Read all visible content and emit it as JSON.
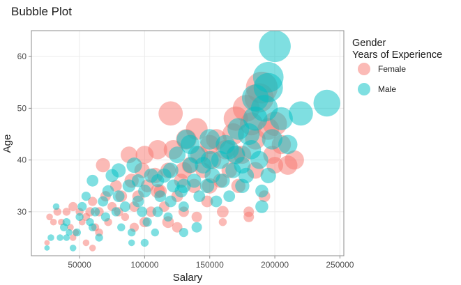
{
  "chart_data": {
    "type": "scatter",
    "title": "Bubble Plot",
    "xlabel": "Salary",
    "ylabel": "Age",
    "xlim": [
      13000,
      253000
    ],
    "ylim": [
      21.5,
      65
    ],
    "x_ticks": [
      50000,
      100000,
      150000,
      200000,
      250000
    ],
    "y_ticks": [
      30,
      40,
      50,
      60
    ],
    "grid": true,
    "legend_position": "right",
    "legend_title_lines": [
      "Gender",
      "Years of Experience"
    ],
    "size_variable": "Years of Experience",
    "series": [
      {
        "name": "Female",
        "color": "#F8766D",
        "points": [
          [
            25000,
            24,
            1
          ],
          [
            27000,
            29,
            2
          ],
          [
            30000,
            28,
            2
          ],
          [
            33000,
            30,
            3
          ],
          [
            36000,
            28,
            2
          ],
          [
            40000,
            30,
            3
          ],
          [
            43000,
            27,
            2
          ],
          [
            45000,
            31,
            4
          ],
          [
            47000,
            26,
            2
          ],
          [
            50000,
            30,
            3
          ],
          [
            52000,
            28,
            2
          ],
          [
            55000,
            29,
            3
          ],
          [
            58000,
            30,
            4
          ],
          [
            60000,
            32,
            4
          ],
          [
            62000,
            27,
            3
          ],
          [
            65000,
            30,
            4
          ],
          [
            68000,
            39,
            8
          ],
          [
            70000,
            33,
            5
          ],
          [
            72000,
            28,
            3
          ],
          [
            75000,
            31,
            4
          ],
          [
            78000,
            35,
            6
          ],
          [
            80000,
            30,
            4
          ],
          [
            82000,
            33,
            6
          ],
          [
            85000,
            29,
            3
          ],
          [
            88000,
            41,
            10
          ],
          [
            90000,
            36,
            8
          ],
          [
            92000,
            31,
            5
          ],
          [
            95000,
            33,
            6
          ],
          [
            98000,
            38,
            9
          ],
          [
            100000,
            41,
            11
          ],
          [
            102000,
            35,
            7
          ],
          [
            105000,
            30,
            5
          ],
          [
            108000,
            37,
            9
          ],
          [
            110000,
            42,
            12
          ],
          [
            112000,
            34,
            7
          ],
          [
            115000,
            31,
            5
          ],
          [
            118000,
            38,
            9
          ],
          [
            120000,
            49,
            16
          ],
          [
            122000,
            42,
            12
          ],
          [
            125000,
            33,
            6
          ],
          [
            128000,
            36,
            8
          ],
          [
            130000,
            30,
            5
          ],
          [
            132000,
            44,
            13
          ],
          [
            135000,
            39,
            10
          ],
          [
            138000,
            35,
            8
          ],
          [
            140000,
            46,
            14
          ],
          [
            142000,
            41,
            11
          ],
          [
            145000,
            38,
            9
          ],
          [
            148000,
            32,
            6
          ],
          [
            150000,
            43,
            12
          ],
          [
            152000,
            40,
            11
          ],
          [
            155000,
            44,
            13
          ],
          [
            158000,
            36,
            8
          ],
          [
            160000,
            28,
            3
          ],
          [
            162000,
            42,
            12
          ],
          [
            165000,
            38,
            9
          ],
          [
            168000,
            45,
            14
          ],
          [
            170000,
            48,
            16
          ],
          [
            172000,
            35,
            8
          ],
          [
            175000,
            41,
            11
          ],
          [
            178000,
            50,
            18
          ],
          [
            180000,
            30,
            5
          ],
          [
            182000,
            47,
            15
          ],
          [
            185000,
            44,
            13
          ],
          [
            188000,
            52,
            20
          ],
          [
            190000,
            54,
            22
          ],
          [
            192000,
            33,
            6
          ],
          [
            195000,
            46,
            14
          ],
          [
            198000,
            41,
            11
          ],
          [
            200000,
            39,
            10
          ],
          [
            205000,
            43,
            12
          ],
          [
            210000,
            39,
            12
          ],
          [
            215000,
            40,
            12
          ],
          [
            100000,
            28,
            5
          ],
          [
            118000,
            28,
            6
          ],
          [
            125000,
            27,
            5
          ],
          [
            140000,
            29,
            5
          ],
          [
            160000,
            30,
            6
          ],
          [
            180000,
            29,
            5
          ],
          [
            45000,
            25,
            2
          ],
          [
            55000,
            24,
            2
          ],
          [
            60000,
            23,
            2
          ],
          [
            65000,
            26,
            3
          ],
          [
            92000,
            27,
            4
          ],
          [
            110000,
            34,
            8
          ],
          [
            130000,
            38,
            10
          ],
          [
            150000,
            35,
            9
          ],
          [
            170000,
            41,
            12
          ],
          [
            185000,
            38,
            10
          ],
          [
            200000,
            47,
            16
          ]
        ]
      },
      {
        "name": "Male",
        "color": "#00BFC4",
        "points": [
          [
            25000,
            23,
            1
          ],
          [
            28000,
            25,
            2
          ],
          [
            32000,
            31,
            2
          ],
          [
            35000,
            25,
            2
          ],
          [
            38000,
            27,
            3
          ],
          [
            40000,
            28,
            3
          ],
          [
            42000,
            26,
            2
          ],
          [
            45000,
            23,
            2
          ],
          [
            48000,
            26,
            3
          ],
          [
            50000,
            29,
            3
          ],
          [
            52000,
            31,
            4
          ],
          [
            55000,
            33,
            4
          ],
          [
            58000,
            28,
            3
          ],
          [
            60000,
            36,
            6
          ],
          [
            62000,
            30,
            4
          ],
          [
            65000,
            25,
            3
          ],
          [
            68000,
            32,
            5
          ],
          [
            70000,
            29,
            4
          ],
          [
            72000,
            34,
            6
          ],
          [
            75000,
            37,
            7
          ],
          [
            78000,
            30,
            4
          ],
          [
            80000,
            33,
            6
          ],
          [
            82000,
            27,
            3
          ],
          [
            85000,
            31,
            5
          ],
          [
            88000,
            35,
            7
          ],
          [
            90000,
            24,
            2
          ],
          [
            92000,
            39,
            9
          ],
          [
            95000,
            32,
            6
          ],
          [
            98000,
            30,
            5
          ],
          [
            100000,
            34,
            7
          ],
          [
            102000,
            28,
            4
          ],
          [
            105000,
            37,
            8
          ],
          [
            108000,
            26,
            3
          ],
          [
            110000,
            30,
            5
          ],
          [
            112000,
            33,
            6
          ],
          [
            115000,
            37,
            8
          ],
          [
            118000,
            29,
            4
          ],
          [
            120000,
            32,
            6
          ],
          [
            122000,
            35,
            7
          ],
          [
            125000,
            41,
            10
          ],
          [
            128000,
            34,
            7
          ],
          [
            130000,
            31,
            5
          ],
          [
            132000,
            44,
            12
          ],
          [
            135000,
            39,
            9
          ],
          [
            138000,
            36,
            8
          ],
          [
            140000,
            41,
            11
          ],
          [
            142000,
            33,
            6
          ],
          [
            145000,
            39,
            10
          ],
          [
            148000,
            35,
            8
          ],
          [
            150000,
            44,
            13
          ],
          [
            152000,
            37,
            9
          ],
          [
            155000,
            32,
            6
          ],
          [
            158000,
            40,
            11
          ],
          [
            160000,
            36,
            8
          ],
          [
            162000,
            43,
            12
          ],
          [
            165000,
            33,
            6
          ],
          [
            168000,
            38,
            9
          ],
          [
            170000,
            41,
            11
          ],
          [
            172000,
            46,
            14
          ],
          [
            175000,
            39,
            10
          ],
          [
            178000,
            37,
            9
          ],
          [
            180000,
            45,
            14
          ],
          [
            182000,
            42,
            12
          ],
          [
            185000,
            48,
            16
          ],
          [
            188000,
            40,
            11
          ],
          [
            190000,
            34,
            7
          ],
          [
            192000,
            50,
            18
          ],
          [
            195000,
            56,
            21
          ],
          [
            198000,
            44,
            13
          ],
          [
            200000,
            62,
            22
          ],
          [
            205000,
            48,
            15
          ],
          [
            210000,
            43,
            12
          ],
          [
            220000,
            49,
            16
          ],
          [
            240000,
            51,
            18
          ],
          [
            195000,
            54,
            20
          ],
          [
            185000,
            52,
            18
          ],
          [
            190000,
            31,
            7
          ],
          [
            195000,
            37,
            9
          ],
          [
            150000,
            40,
            11
          ],
          [
            130000,
            35,
            8
          ],
          [
            110000,
            36,
            7
          ],
          [
            95000,
            36,
            7
          ],
          [
            120000,
            38,
            9
          ],
          [
            135000,
            43,
            12
          ],
          [
            165000,
            42,
            12
          ],
          [
            175000,
            35,
            8
          ],
          [
            40000,
            25,
            2
          ],
          [
            60000,
            27,
            3
          ],
          [
            90000,
            26,
            3
          ],
          [
            130000,
            26,
            4
          ],
          [
            140000,
            27,
            5
          ],
          [
            100000,
            24,
            3
          ],
          [
            80000,
            38,
            8
          ]
        ]
      }
    ]
  }
}
